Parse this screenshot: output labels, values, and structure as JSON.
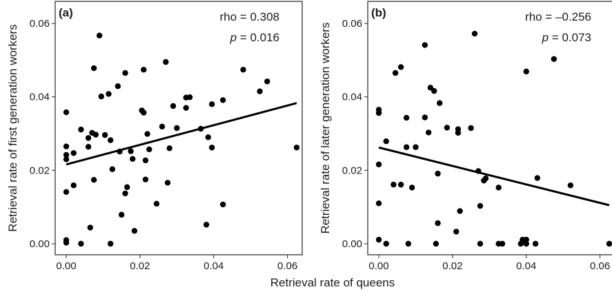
{
  "figure": {
    "shared_xlabel": "Retrieval rate of queens"
  },
  "chart_data": [
    {
      "type": "scatter",
      "panel_label": "(a)",
      "xlabel": "",
      "ylabel": "Retrieval rate of first generation workers",
      "xlim": [
        -0.003,
        0.064
      ],
      "ylim": [
        -0.003,
        0.066
      ],
      "x_ticks": [
        0.0,
        0.02,
        0.04,
        0.06
      ],
      "x_tick_labels": [
        "0.00",
        "0.02",
        "0.04",
        "0.06"
      ],
      "y_ticks": [
        0.0,
        0.02,
        0.04,
        0.06
      ],
      "y_tick_labels": [
        "0.00",
        "0.02",
        "0.04",
        "0.06"
      ],
      "grid": false,
      "stats": {
        "rho_label": "rho = 0.308",
        "p_symbol": "p",
        "p_rest": " = 0.016"
      },
      "fit_line": {
        "x": [
          0.0,
          0.0625
        ],
        "y": [
          0.0216,
          0.0383
        ]
      },
      "points": [
        [
          0.0,
          0.0358
        ],
        [
          0.0,
          0.0265
        ],
        [
          0.0,
          0.0242
        ],
        [
          0.0,
          0.023
        ],
        [
          0.0,
          0.0141
        ],
        [
          0.0,
          0.001
        ],
        [
          0.0,
          0.0003
        ],
        [
          0.002,
          0.0247
        ],
        [
          0.002,
          0.0159
        ],
        [
          0.004,
          0.0311
        ],
        [
          0.004,
          0.0
        ],
        [
          0.006,
          0.0288
        ],
        [
          0.006,
          0.0264
        ],
        [
          0.0065,
          0.0044
        ],
        [
          0.007,
          0.0302
        ],
        [
          0.0075,
          0.0478
        ],
        [
          0.0075,
          0.0174
        ],
        [
          0.008,
          0.0297
        ],
        [
          0.009,
          0.0567
        ],
        [
          0.0095,
          0.0401
        ],
        [
          0.0105,
          0.0296
        ],
        [
          0.0115,
          0.0408
        ],
        [
          0.012,
          0.0282
        ],
        [
          0.012,
          0.0
        ],
        [
          0.0125,
          0.0203
        ],
        [
          0.014,
          0.0429
        ],
        [
          0.0145,
          0.0251
        ],
        [
          0.015,
          0.0079
        ],
        [
          0.016,
          0.0465
        ],
        [
          0.016,
          0.0137
        ],
        [
          0.0165,
          0.0154
        ],
        [
          0.0175,
          0.0252
        ],
        [
          0.018,
          0.0231
        ],
        [
          0.0185,
          0.0035
        ],
        [
          0.0205,
          0.0363
        ],
        [
          0.021,
          0.0474
        ],
        [
          0.021,
          0.0357
        ],
        [
          0.0215,
          0.0175
        ],
        [
          0.0215,
          0.0227
        ],
        [
          0.022,
          0.0299
        ],
        [
          0.0225,
          0.0257
        ],
        [
          0.0245,
          0.0109
        ],
        [
          0.026,
          0.0319
        ],
        [
          0.027,
          0.0495
        ],
        [
          0.0275,
          0.0166
        ],
        [
          0.028,
          0.026
        ],
        [
          0.029,
          0.0375
        ],
        [
          0.03,
          0.0315
        ],
        [
          0.0325,
          0.037
        ],
        [
          0.0325,
          0.0398
        ],
        [
          0.0335,
          0.0399
        ],
        [
          0.0365,
          0.0313
        ],
        [
          0.038,
          0.0052
        ],
        [
          0.0385,
          0.029
        ],
        [
          0.0395,
          0.038
        ],
        [
          0.0395,
          0.0262
        ],
        [
          0.0425,
          0.0107
        ],
        [
          0.0425,
          0.0391
        ],
        [
          0.048,
          0.0474
        ],
        [
          0.0525,
          0.0415
        ],
        [
          0.0545,
          0.0442
        ],
        [
          0.0625,
          0.0262
        ]
      ]
    },
    {
      "type": "scatter",
      "panel_label": "(b)",
      "xlabel": "",
      "ylabel": "Retrieval rate of later generation workers",
      "xlim": [
        -0.003,
        0.064
      ],
      "ylim": [
        -0.003,
        0.066
      ],
      "x_ticks": [
        0.0,
        0.02,
        0.04,
        0.06
      ],
      "x_tick_labels": [
        "0.00",
        "0.02",
        "0.04",
        "0.06"
      ],
      "y_ticks": [
        0.0,
        0.02,
        0.04,
        0.06
      ],
      "y_tick_labels": [
        "0.00",
        "0.02",
        "0.04",
        "0.06"
      ],
      "grid": false,
      "stats": {
        "rho_label": "rho = –0.256",
        "p_symbol": "p",
        "p_rest": " = 0.073"
      },
      "fit_line": {
        "x": [
          0.0,
          0.0625
        ],
        "y": [
          0.0262,
          0.0105
        ]
      },
      "points": [
        [
          0.0,
          0.0365
        ],
        [
          0.0,
          0.0356
        ],
        [
          0.0,
          0.0216
        ],
        [
          0.0,
          0.011
        ],
        [
          0.0,
          0.0011
        ],
        [
          0.002,
          0.0279
        ],
        [
          0.002,
          0.0
        ],
        [
          0.004,
          0.0161
        ],
        [
          0.0045,
          0.0465
        ],
        [
          0.006,
          0.0481
        ],
        [
          0.006,
          0.0161
        ],
        [
          0.0075,
          0.0343
        ],
        [
          0.0075,
          0.0263
        ],
        [
          0.008,
          0.0
        ],
        [
          0.009,
          0.0153
        ],
        [
          0.01,
          0.0263
        ],
        [
          0.0125,
          0.0541
        ],
        [
          0.0125,
          0.0344
        ],
        [
          0.0135,
          0.0303
        ],
        [
          0.014,
          0.0425
        ],
        [
          0.015,
          0.0416
        ],
        [
          0.0155,
          0.0
        ],
        [
          0.016,
          0.0191
        ],
        [
          0.016,
          0.0056
        ],
        [
          0.0165,
          0.0383
        ],
        [
          0.0185,
          0.0316
        ],
        [
          0.021,
          0.0033
        ],
        [
          0.0215,
          0.0312
        ],
        [
          0.0215,
          0.0302
        ],
        [
          0.022,
          0.0089
        ],
        [
          0.025,
          0.0315
        ],
        [
          0.026,
          0.0572
        ],
        [
          0.027,
          0.0198
        ],
        [
          0.0275,
          0.0103
        ],
        [
          0.0275,
          0.0
        ],
        [
          0.0285,
          0.0172
        ],
        [
          0.029,
          0.0178
        ],
        [
          0.0325,
          0.0153
        ],
        [
          0.0325,
          0.0
        ],
        [
          0.0335,
          0.0
        ],
        [
          0.0385,
          0.0
        ],
        [
          0.039,
          0.0011
        ],
        [
          0.04,
          0.0
        ],
        [
          0.04,
          0.0011
        ],
        [
          0.04,
          0.0469
        ],
        [
          0.0425,
          0.0
        ],
        [
          0.043,
          0.0179
        ],
        [
          0.0475,
          0.0503
        ],
        [
          0.052,
          0.0159
        ],
        [
          0.0625,
          0.0
        ]
      ]
    }
  ]
}
